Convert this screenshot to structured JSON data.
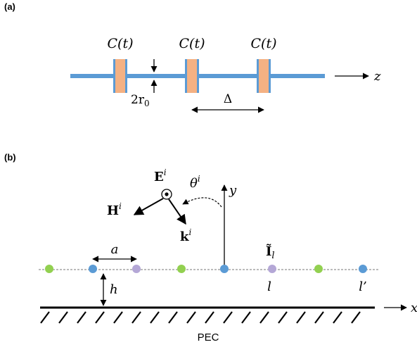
{
  "panel_a": {
    "label": "(a)",
    "capacitor_label": "C(t)",
    "radius_label": "2r",
    "radius_sub": "0",
    "spacing_label": "Δ",
    "axis_label": "z",
    "colors": {
      "wire": "#5b9bd5",
      "capacitor": "#f4b183"
    }
  },
  "panel_b": {
    "label": "(b)",
    "field_e": "E",
    "field_h": "H",
    "field_k": "k",
    "sup_i": "i",
    "theta": "θ",
    "axis_y": "y",
    "axis_x": "x",
    "spacing_a": "a",
    "height_h": "h",
    "current_label": "Ĩ",
    "current_sub": "l",
    "index_l": "l",
    "index_lp": "l’",
    "ground_label": "PEC",
    "colors": {
      "green": "#92d050",
      "blue": "#5b9bd5",
      "purple": "#b4a7d6"
    }
  }
}
